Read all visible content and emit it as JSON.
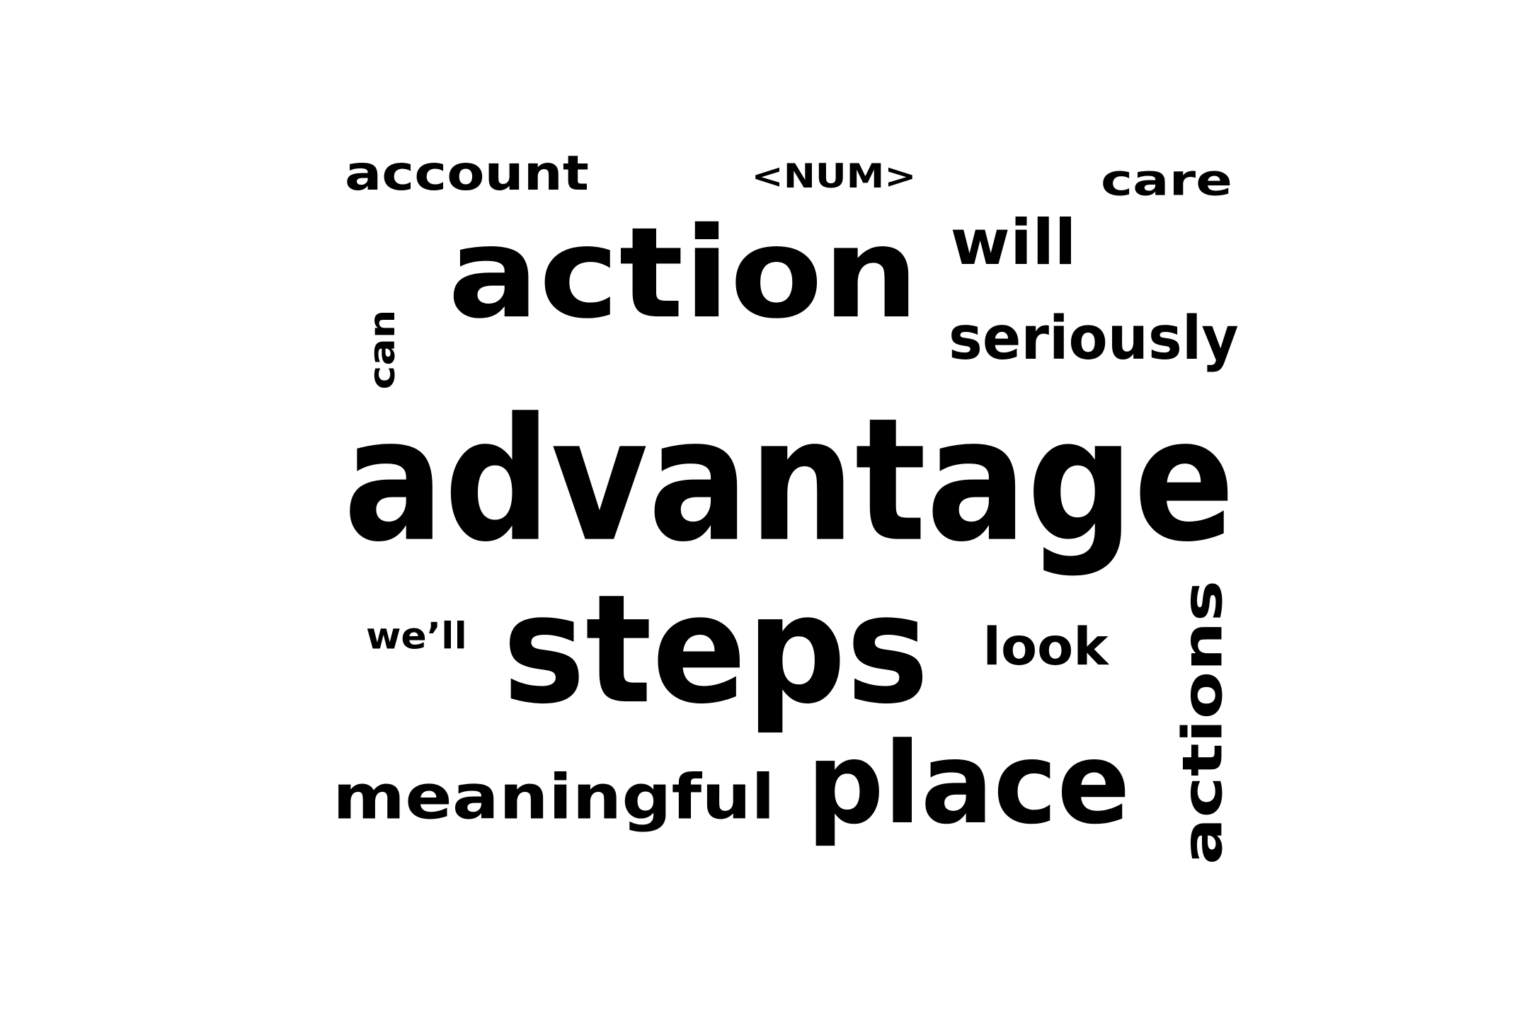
{
  "word_cloud": {
    "text_color": "#000000",
    "background": "#ffffff",
    "words": [
      {
        "text": "account",
        "rotated": false
      },
      {
        "text": "<NUM>",
        "rotated": false
      },
      {
        "text": "care",
        "rotated": false
      },
      {
        "text": "action",
        "rotated": false
      },
      {
        "text": "will",
        "rotated": false
      },
      {
        "text": "seriously",
        "rotated": false
      },
      {
        "text": "can",
        "rotated": true
      },
      {
        "text": "advantage",
        "rotated": false
      },
      {
        "text": "we’ll",
        "rotated": false
      },
      {
        "text": "steps",
        "rotated": false
      },
      {
        "text": "look",
        "rotated": false
      },
      {
        "text": "actions",
        "rotated": true
      },
      {
        "text": "meaningful",
        "rotated": false
      },
      {
        "text": "place",
        "rotated": false
      }
    ]
  }
}
